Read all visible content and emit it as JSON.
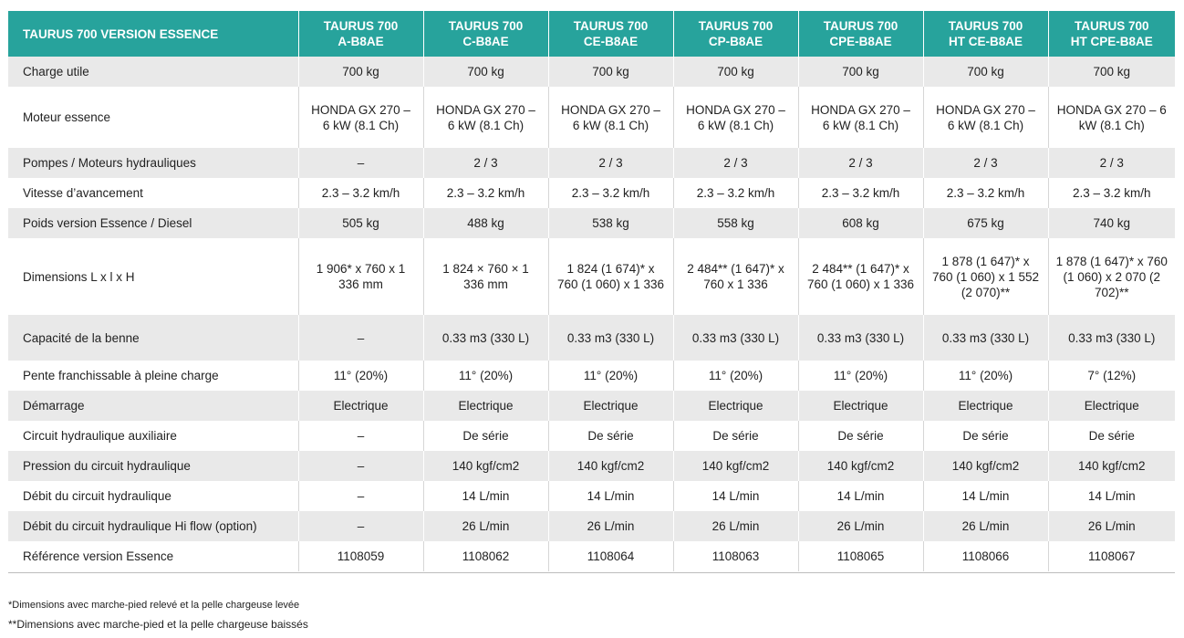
{
  "table": {
    "title": "TAURUS 700 VERSION ESSENCE",
    "models": [
      {
        "line1": "TAURUS 700",
        "line2": "A-B8AE"
      },
      {
        "line1": "TAURUS 700",
        "line2": "C-B8AE"
      },
      {
        "line1": "TAURUS 700",
        "line2": "CE-B8AE"
      },
      {
        "line1": "TAURUS 700",
        "line2": "CP-B8AE"
      },
      {
        "line1": "TAURUS 700",
        "line2": "CPE-B8AE"
      },
      {
        "line1": "TAURUS 700",
        "line2": "HT CE-B8AE"
      },
      {
        "line1": "TAURUS 700",
        "line2": "HT CPE-B8AE"
      }
    ],
    "rows": [
      {
        "label": "Charge utile",
        "values": [
          "700 kg",
          "700 kg",
          "700 kg",
          "700 kg",
          "700 kg",
          "700 kg",
          "700 kg"
        ]
      },
      {
        "label": "Moteur essence",
        "values": [
          "HONDA GX 270 – 6 kW (8.1 Ch)",
          "HONDA GX 270 – 6 kW (8.1 Ch)",
          "HONDA GX 270 – 6 kW (8.1 Ch)",
          "HONDA GX 270 – 6 kW (8.1 Ch)",
          "HONDA GX 270 – 6 kW (8.1 Ch)",
          "HONDA GX 270 – 6 kW (8.1 Ch)",
          "HONDA GX 270 – 6 kW (8.1 Ch)"
        ]
      },
      {
        "label": "Pompes / Moteurs hydrauliques",
        "values": [
          "–",
          "2 / 3",
          "2 / 3",
          "2 / 3",
          "2 / 3",
          "2 / 3",
          "2 / 3"
        ]
      },
      {
        "label": "Vitesse d’avancement",
        "values": [
          "2.3 – 3.2 km/h",
          "2.3 – 3.2 km/h",
          "2.3 – 3.2 km/h",
          "2.3 – 3.2 km/h",
          "2.3 – 3.2 km/h",
          "2.3 – 3.2 km/h",
          "2.3 – 3.2 km/h"
        ]
      },
      {
        "label": "Poids version Essence / Diesel",
        "values": [
          "505 kg",
          "488 kg",
          "538 kg",
          "558 kg",
          "608 kg",
          "675 kg",
          "740 kg"
        ]
      },
      {
        "label": "Dimensions L x l x H",
        "values": [
          "1 906* x 760 x 1 336 mm",
          "1 824 × 760 × 1 336 mm",
          "1 824 (1 674)* x 760 (1 060) x 1 336",
          "2 484** (1 647)* x 760 x 1 336",
          "2 484** (1 647)* x 760 (1 060) x 1 336",
          "1 878 (1 647)* x 760 (1 060) x 1 552 (2 070)**",
          "1 878 (1 647)* x 760 (1 060) x 2 070 (2 702)**"
        ]
      },
      {
        "label": "Capacité de la benne",
        "values": [
          "–",
          "0.33 m3 (330 L)",
          "0.33 m3 (330 L)",
          "0.33 m3 (330 L)",
          "0.33 m3 (330 L)",
          "0.33 m3 (330 L)",
          "0.33 m3 (330 L)"
        ]
      },
      {
        "label": "Pente franchissable à pleine charge",
        "values": [
          "11° (20%)",
          "11° (20%)",
          "11° (20%)",
          "11° (20%)",
          "11° (20%)",
          "11° (20%)",
          "7° (12%)"
        ]
      },
      {
        "label": "Démarrage",
        "values": [
          "Electrique",
          "Electrique",
          "Electrique",
          "Electrique",
          "Electrique",
          "Electrique",
          "Electrique"
        ]
      },
      {
        "label": "Circuit hydraulique auxiliaire",
        "values": [
          "–",
          "De série",
          "De série",
          "De série",
          "De série",
          "De série",
          "De série"
        ]
      },
      {
        "label": "Pression du circuit hydraulique",
        "values": [
          "–",
          "140 kgf/cm2",
          "140 kgf/cm2",
          "140 kgf/cm2",
          "140 kgf/cm2",
          "140 kgf/cm2",
          "140 kgf/cm2"
        ]
      },
      {
        "label": "Débit du circuit hydraulique",
        "values": [
          "–",
          "14 L/min",
          "14 L/min",
          "14 L/min",
          "14 L/min",
          "14 L/min",
          "14 L/min"
        ]
      },
      {
        "label": "Débit du circuit hydraulique Hi flow (option)",
        "values": [
          "–",
          "26 L/min",
          "26 L/min",
          "26 L/min",
          "26 L/min",
          "26 L/min",
          "26 L/min"
        ]
      },
      {
        "label": "Référence version Essence",
        "values": [
          "1108059",
          "1108062",
          "1108064",
          "1108063",
          "1108065",
          "1108066",
          "1108067"
        ]
      }
    ]
  },
  "footnotes": {
    "note1": "*Dimensions avec marche-pied relevé et la pelle chargeuse levée",
    "note2": "**Dimensions avec marche-pied et la pelle chargeuse baissés"
  },
  "colors": {
    "header_bg": "#27a39c",
    "stripe_bg": "#e9e9e9"
  }
}
